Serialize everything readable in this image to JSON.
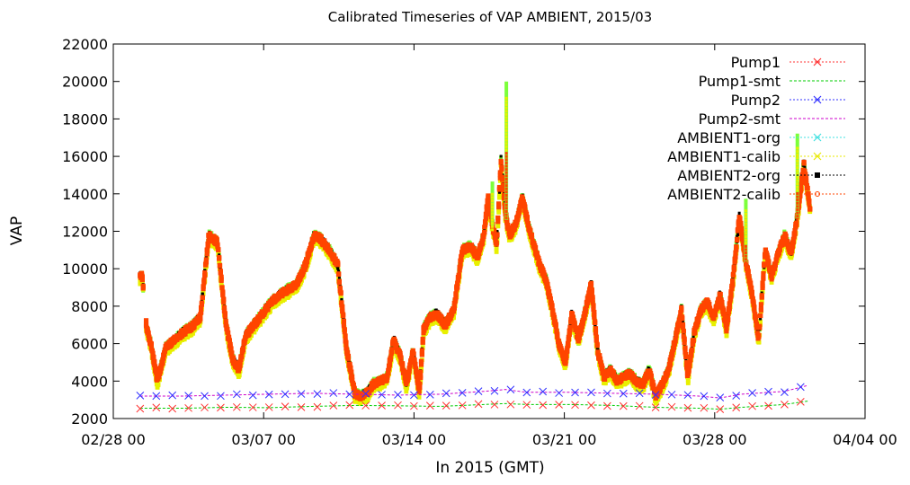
{
  "chart_data": {
    "type": "line",
    "title": "Calibrated Timeseries of VAP AMBIENT, 2015/03",
    "xlabel": "In 2015 (GMT)",
    "ylabel": "VAP",
    "xlim": [
      "02/28 00",
      "04/04 00"
    ],
    "ylim": [
      2000,
      22000
    ],
    "grid": false,
    "legend_position": "top-right",
    "x_ticks": [
      "02/28 00",
      "03/07 00",
      "03/14 00",
      "03/21 00",
      "03/28 00",
      "04/04 00"
    ],
    "y_ticks": [
      "2000",
      "4000",
      "6000",
      "8000",
      "10000",
      "12000",
      "14000",
      "16000",
      "18000",
      "20000",
      "22000"
    ],
    "legend": [
      {
        "name": "Pump1",
        "color": "#ff3030",
        "marker": "x"
      },
      {
        "name": "Pump1-smt",
        "color": "#00cc00",
        "marker": "line"
      },
      {
        "name": "Pump2",
        "color": "#3030ff",
        "marker": "x"
      },
      {
        "name": "Pump2-smt",
        "color": "#cc00cc",
        "marker": "line"
      },
      {
        "name": "AMBIENT1-org",
        "color": "#40e0e0",
        "marker": "x"
      },
      {
        "name": "AMBIENT1-calib",
        "color": "#e8e800",
        "marker": "x"
      },
      {
        "name": "AMBIENT2-org",
        "color": "#000000",
        "marker": "square"
      },
      {
        "name": "AMBIENT2-calib",
        "color": "#ff4400",
        "marker": "circle"
      }
    ],
    "x_start": "03/01 06",
    "ambient_series": {
      "x_days": [
        0,
        0.1,
        0.3,
        0.5,
        0.8,
        1.2,
        1.6,
        2.0,
        2.4,
        2.8,
        3.2,
        3.6,
        4.0,
        4.3,
        4.6,
        4.9,
        5.3,
        5.7,
        6.1,
        6.5,
        6.9,
        7.3,
        7.7,
        8.1,
        8.4,
        8.8,
        9.2,
        9.6,
        10.0,
        10.3,
        10.6,
        10.9,
        11.2,
        11.5,
        11.8,
        12.1,
        12.4,
        12.7,
        13.0,
        13.2,
        13.5,
        13.8,
        14.2,
        14.6,
        15.0,
        15.4,
        15.7,
        16.0,
        16.2,
        16.4,
        16.6,
        16.8,
        17.0,
        17.2,
        17.5,
        17.8,
        18.1,
        18.3,
        18.6,
        18.9,
        19.2,
        19.5,
        19.8,
        20.1,
        20.4,
        20.7,
        21.0,
        21.3,
        21.6,
        21.9,
        22.2,
        22.5,
        22.8,
        23.1,
        23.4,
        23.7,
        24.0,
        24.3,
        24.6,
        24.9,
        25.2,
        25.5,
        25.8,
        26.1,
        26.4,
        26.7,
        27.0,
        27.3,
        27.6,
        27.9,
        28.2,
        28.5,
        28.8,
        29.1,
        29.4,
        29.7,
        30.0,
        30.3,
        30.6,
        30.9,
        31.2
      ],
      "values": [
        9600,
        9600,
        6800,
        6000,
        4000,
        5800,
        6200,
        6600,
        6900,
        7400,
        11800,
        11400,
        7000,
        5200,
        4600,
        6400,
        7000,
        7600,
        8200,
        8600,
        8900,
        9200,
        10200,
        11800,
        11600,
        11000,
        10200,
        5800,
        3300,
        3200,
        3400,
        3900,
        4000,
        4200,
        6200,
        5400,
        3800,
        5600,
        3400,
        6800,
        7400,
        7600,
        7000,
        7800,
        11000,
        11200,
        10600,
        11800,
        13800,
        12400,
        11200,
        15800,
        13000,
        11800,
        12400,
        13800,
        12200,
        11400,
        10200,
        9400,
        7800,
        6000,
        5000,
        7600,
        6200,
        7600,
        9200,
        5600,
        4200,
        4600,
        4000,
        4200,
        4400,
        4000,
        3800,
        4600,
        3200,
        3800,
        4600,
        6200,
        7800,
        4200,
        6600,
        7800,
        8200,
        7400,
        8600,
        6800,
        9400,
        12800,
        10400,
        8600,
        6200,
        11000,
        9600,
        10800,
        11800,
        10800,
        12800,
        15600,
        13200
      ],
      "spikes": [
        {
          "x_days": 17.05,
          "value": 20000
        },
        {
          "x_days": 16.4,
          "value": 14600
        },
        {
          "x_days": 28.2,
          "value": 13800
        },
        {
          "x_days": 30.6,
          "value": 17200
        }
      ]
    },
    "pump_series": {
      "x_days": [
        0,
        2,
        4,
        6,
        8,
        10,
        12,
        14,
        16,
        17,
        18,
        20,
        22,
        24,
        26,
        27,
        28,
        30,
        31.2
      ],
      "Pump1": [
        2550,
        2550,
        2600,
        2580,
        2650,
        2700,
        2680,
        2650,
        2750,
        2800,
        2750,
        2750,
        2700,
        2600,
        2550,
        2500,
        2600,
        2750,
        2950
      ],
      "Pump2": [
        3200,
        3200,
        3250,
        3300,
        3350,
        3300,
        3250,
        3300,
        3450,
        3550,
        3400,
        3400,
        3350,
        3300,
        3200,
        3100,
        3300,
        3450,
        3800
      ]
    }
  }
}
